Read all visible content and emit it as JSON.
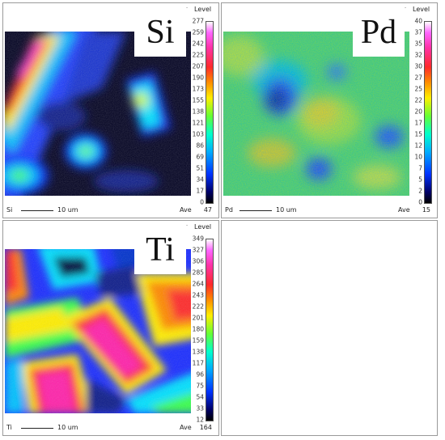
{
  "panels": {
    "si": {
      "element": "Si",
      "level_title": "Level",
      "ticks": [
        "277",
        "259",
        "242",
        "225",
        "207",
        "190",
        "173",
        "155",
        "138",
        "121",
        "103",
        "86",
        "69",
        "51",
        "34",
        "17",
        "0"
      ],
      "footer_elem": "Si",
      "scale": "10 um",
      "ave_label": "Ave",
      "ave_value": "47"
    },
    "pd": {
      "element": "Pd",
      "level_title": "Level",
      "ticks": [
        "40",
        "37",
        "35",
        "32",
        "30",
        "27",
        "25",
        "22",
        "20",
        "17",
        "15",
        "12",
        "10",
        "7",
        "5",
        "2",
        "0"
      ],
      "footer_elem": "Pd",
      "scale": "10 um",
      "ave_label": "Ave",
      "ave_value": "15"
    },
    "ti": {
      "element": "Ti",
      "level_title": "Level",
      "ticks": [
        "349",
        "327",
        "306",
        "285",
        "264",
        "243",
        "222",
        "201",
        "180",
        "159",
        "138",
        "117",
        "96",
        "75",
        "54",
        "33",
        "12"
      ],
      "footer_elem": "Ti",
      "scale": "10 um",
      "ave_label": "Ave",
      "ave_value": "164"
    }
  },
  "colors": {
    "map_low": "#000033",
    "map_mid": "#2cff2c",
    "map_high": "#ff22aa"
  }
}
